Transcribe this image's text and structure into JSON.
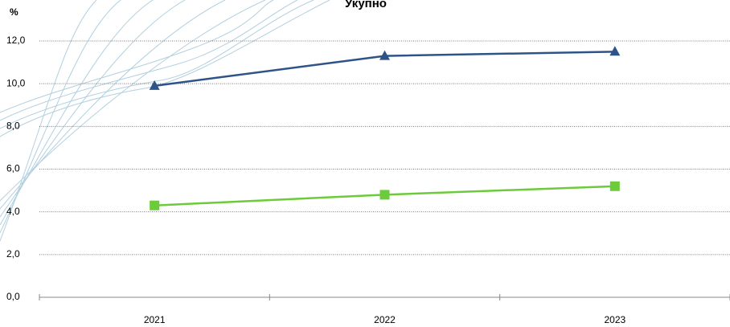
{
  "chart_data": {
    "type": "line",
    "title": "Укупно",
    "y_label": "%",
    "categories": [
      "2021",
      "2022",
      "2023"
    ],
    "series": [
      {
        "color": "#2e5487",
        "marker": "triangle",
        "values": [
          9.9,
          11.3,
          11.5
        ]
      },
      {
        "color": "#6ccb3a",
        "marker": "square",
        "values": [
          4.3,
          4.8,
          5.2
        ]
      }
    ],
    "ylim": [
      0,
      12
    ],
    "yticks": [
      {
        "value": 0,
        "label": "0,0"
      },
      {
        "value": 2,
        "label": "2,0"
      },
      {
        "value": 4,
        "label": "4,0"
      },
      {
        "value": 6,
        "label": "6,0"
      },
      {
        "value": 8,
        "label": "8,0"
      },
      {
        "value": 10,
        "label": "10,0"
      },
      {
        "value": 12,
        "label": "12,0"
      }
    ],
    "grid": true
  }
}
